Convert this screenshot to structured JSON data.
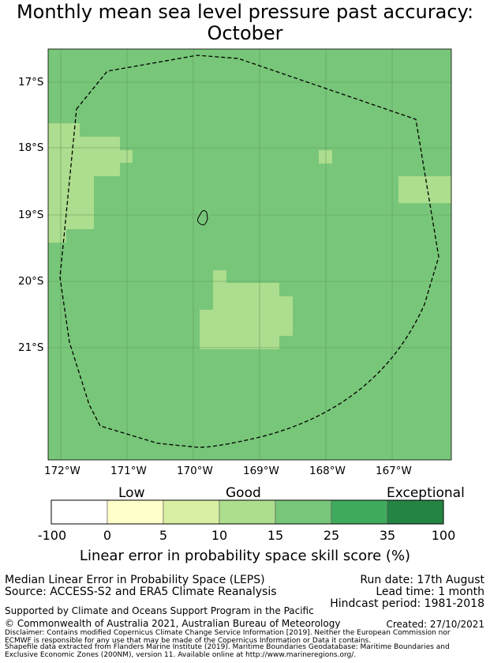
{
  "title": {
    "line1": "Monthly mean sea level pressure past accuracy:",
    "line2": "October"
  },
  "map": {
    "lat_labels": [
      "17°S",
      "18°S",
      "19°S",
      "20°S",
      "21°S"
    ],
    "lon_labels": [
      "172°W",
      "171°W",
      "170°W",
      "169°W",
      "168°W",
      "167°W"
    ],
    "base_category": "25",
    "lower_category": "15",
    "gridline_color": "#5f9a5f",
    "boundary_style": "dashed",
    "island": "Niue"
  },
  "colorbar": {
    "words": {
      "low": "Low",
      "good": "Good",
      "exceptional": "Exceptional"
    },
    "ticks": [
      "-100",
      "0",
      "5",
      "10",
      "15",
      "25",
      "35",
      "100"
    ],
    "colors": [
      "#ffffff",
      "#ffffcc",
      "#d9f0a3",
      "#addd8e",
      "#78c679",
      "#41ab5d",
      "#238443"
    ],
    "label": "Linear error in probability space skill score (%)"
  },
  "info": {
    "method": "Median Linear Error in Probability Space (LEPS)",
    "source": "Source: ACCESS-S2 and ERA5 Climate Reanalysis",
    "run_date": "Run date: 17th August",
    "lead_time": "Lead time: 1 month",
    "hindcast": "Hindcast period: 1981-2018",
    "support": "Supported by Climate and Oceans Support Program in the Pacific",
    "copyright": "© Commonwealth of Australia 2021, Australian Bureau of Meteorology",
    "created": "Created: 27/10/2021",
    "disclaimer1": "Disclaimer: Contains modified Copernicus Climate Change Service Information [2019]. Neither the European Commission nor",
    "disclaimer2": "ECMWF is responsible for any use that may be made of the Copernicus Information or Data it contains.",
    "shapefile1": "Shapefile data extracted from Flanders Marine Institute (2019). Maritime Boundaries Geodatabase: Maritime Boundaries and",
    "shapefile2": "Exclusive Economic Zones (200NM), version 11. Available online at http://www.marineregions.org/."
  }
}
